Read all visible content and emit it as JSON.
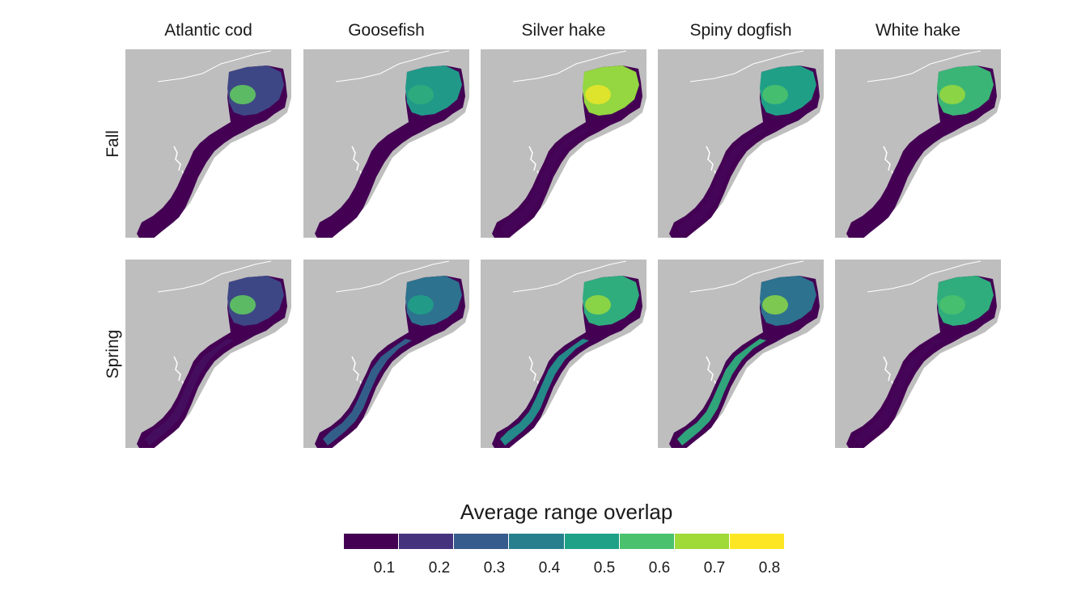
{
  "columns": [
    "Atlantic cod",
    "Goosefish",
    "Silver hake",
    "Spiny dogfish",
    "White hake"
  ],
  "rows": [
    "Fall",
    "Spring"
  ],
  "land_color": "#bebebe",
  "low_color": "#440154",
  "panels": [
    {
      "row": "Fall",
      "species": "Atlantic cod",
      "gulf_of_maine": 0.22,
      "southern_shelf": 0.05,
      "hotspot": 0.65
    },
    {
      "row": "Fall",
      "species": "Goosefish",
      "gulf_of_maine": 0.48,
      "southern_shelf": 0.05,
      "hotspot": 0.55
    },
    {
      "row": "Fall",
      "species": "Silver hake",
      "gulf_of_maine": 0.72,
      "southern_shelf": 0.06,
      "hotspot": 0.82
    },
    {
      "row": "Fall",
      "species": "Spiny dogfish",
      "gulf_of_maine": 0.5,
      "southern_shelf": 0.06,
      "hotspot": 0.62
    },
    {
      "row": "Fall",
      "species": "White hake",
      "gulf_of_maine": 0.58,
      "southern_shelf": 0.05,
      "hotspot": 0.72
    },
    {
      "row": "Spring",
      "species": "Atlantic cod",
      "gulf_of_maine": 0.22,
      "southern_shelf": 0.08,
      "hotspot": 0.65
    },
    {
      "row": "Spring",
      "species": "Goosefish",
      "gulf_of_maine": 0.35,
      "southern_shelf": 0.3,
      "hotspot": 0.5
    },
    {
      "row": "Spring",
      "species": "Silver hake",
      "gulf_of_maine": 0.55,
      "southern_shelf": 0.45,
      "hotspot": 0.72
    },
    {
      "row": "Spring",
      "species": "Spiny dogfish",
      "gulf_of_maine": 0.35,
      "southern_shelf": 0.55,
      "hotspot": 0.7
    },
    {
      "row": "Spring",
      "species": "White hake",
      "gulf_of_maine": 0.55,
      "southern_shelf": 0.06,
      "hotspot": 0.62
    }
  ],
  "legend": {
    "title": "Average range overlap",
    "colors": [
      "#440154",
      "#46337e",
      "#365c8d",
      "#277f8e",
      "#1fa187",
      "#4ac16d",
      "#a0da39",
      "#fde725"
    ],
    "ticks": [
      "0.1",
      "0.2",
      "0.3",
      "0.4",
      "0.5",
      "0.6",
      "0.7",
      "0.8"
    ]
  }
}
